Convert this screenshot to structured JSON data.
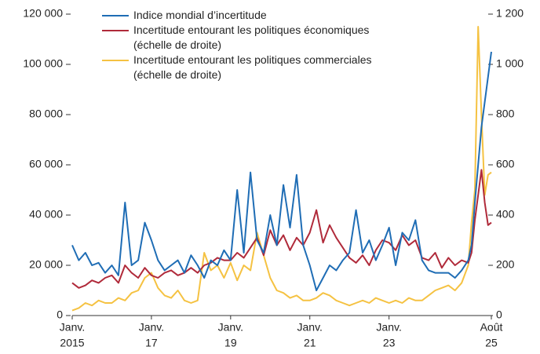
{
  "chart_data": {
    "type": "line",
    "x": [
      "2015-01",
      "2015-03",
      "2015-05",
      "2015-07",
      "2015-09",
      "2015-11",
      "2016-01",
      "2016-03",
      "2016-05",
      "2016-07",
      "2016-09",
      "2016-11",
      "2017-01",
      "2017-03",
      "2017-05",
      "2017-07",
      "2017-09",
      "2017-11",
      "2018-01",
      "2018-03",
      "2018-05",
      "2018-07",
      "2018-09",
      "2018-11",
      "2019-01",
      "2019-03",
      "2019-05",
      "2019-07",
      "2019-09",
      "2019-11",
      "2020-01",
      "2020-03",
      "2020-05",
      "2020-07",
      "2020-09",
      "2020-11",
      "2021-01",
      "2021-03",
      "2021-05",
      "2021-07",
      "2021-09",
      "2021-11",
      "2022-01",
      "2022-03",
      "2022-05",
      "2022-07",
      "2022-09",
      "2022-11",
      "2023-01",
      "2023-03",
      "2023-05",
      "2023-07",
      "2023-09",
      "2023-11",
      "2024-01",
      "2024-03",
      "2024-05",
      "2024-07",
      "2024-09",
      "2024-11",
      "2025-01",
      "2025-02",
      "2025-03",
      "2025-04",
      "2025-05",
      "2025-06",
      "2025-07",
      "2025-08"
    ],
    "xlim": [
      "2015-01",
      "2025-08"
    ],
    "xticks": [
      {
        "value": "2015-01",
        "label": [
          "Janv.",
          "2015"
        ]
      },
      {
        "value": "2017-01",
        "label": [
          "Janv.",
          "17"
        ]
      },
      {
        "value": "2019-01",
        "label": [
          "Janv.",
          "19"
        ]
      },
      {
        "value": "2021-01",
        "label": [
          "Janv.",
          "21"
        ]
      },
      {
        "value": "2023-01",
        "label": [
          "Janv.",
          "23"
        ]
      },
      {
        "value": "2025-08",
        "label": [
          "Août",
          "25"
        ]
      }
    ],
    "ylim": [
      0,
      120000
    ],
    "yticks": [
      0,
      {
        "value": 20000,
        "label": "20 000"
      },
      {
        "value": 40000,
        "label": "40 000"
      },
      {
        "value": 60000,
        "label": "60 000"
      },
      {
        "value": 80000,
        "label": "80 000"
      },
      {
        "value": 100000,
        "label": "100 000"
      },
      {
        "value": 120000,
        "label": "120 000"
      }
    ],
    "y2lim": [
      0,
      1200
    ],
    "y2ticks": [
      0,
      200,
      400,
      600,
      800,
      {
        "value": 1000,
        "label": "1 000"
      },
      {
        "value": 1200,
        "label": "1 200"
      }
    ],
    "series": [
      {
        "name": "Indice mondial d’incertitude",
        "color": "#1f6db5",
        "values": [
          28000,
          22000,
          25000,
          20000,
          21000,
          17000,
          20000,
          16000,
          45000,
          20000,
          22000,
          37000,
          30000,
          22000,
          18000,
          20000,
          22000,
          17000,
          24000,
          20000,
          15000,
          22000,
          20000,
          26000,
          22000,
          50000,
          25000,
          57000,
          30000,
          25000,
          40000,
          28000,
          52000,
          35000,
          56000,
          28000,
          20000,
          10000,
          15000,
          20000,
          18000,
          22000,
          25000,
          42000,
          25000,
          30000,
          22000,
          28000,
          35000,
          20000,
          33000,
          30000,
          38000,
          22000,
          18000,
          17000,
          17000,
          17000,
          15000,
          18000,
          22000,
          28000,
          45000,
          60000,
          75000,
          85000,
          95000,
          105000
        ]
      },
      {
        "name": "Incertitude entourant les politiques économiques (échelle de droite)",
        "color": "#b02a3a",
        "axis": "y2",
        "values": [
          130,
          110,
          120,
          140,
          130,
          150,
          160,
          130,
          200,
          170,
          150,
          190,
          160,
          150,
          170,
          180,
          160,
          170,
          190,
          170,
          200,
          210,
          230,
          220,
          220,
          250,
          230,
          270,
          310,
          240,
          340,
          280,
          320,
          260,
          310,
          280,
          330,
          420,
          290,
          360,
          310,
          270,
          230,
          210,
          240,
          200,
          260,
          300,
          290,
          260,
          320,
          280,
          300,
          230,
          220,
          250,
          190,
          230,
          200,
          220,
          210,
          250,
          380,
          480,
          580,
          450,
          360,
          370
        ]
      },
      {
        "name": "Incertitude entourant les politiques commerciales (échelle de droite)",
        "color": "#f5c242",
        "axis": "y2",
        "values": [
          20,
          30,
          50,
          40,
          60,
          50,
          50,
          70,
          60,
          90,
          100,
          150,
          170,
          110,
          80,
          70,
          100,
          60,
          50,
          60,
          250,
          180,
          200,
          150,
          210,
          140,
          200,
          180,
          330,
          240,
          150,
          100,
          90,
          70,
          80,
          60,
          60,
          70,
          90,
          80,
          60,
          50,
          40,
          50,
          60,
          50,
          70,
          60,
          50,
          60,
          50,
          70,
          60,
          60,
          80,
          100,
          110,
          120,
          100,
          130,
          200,
          370,
          500,
          1150,
          800,
          480,
          560,
          570
        ]
      }
    ]
  }
}
